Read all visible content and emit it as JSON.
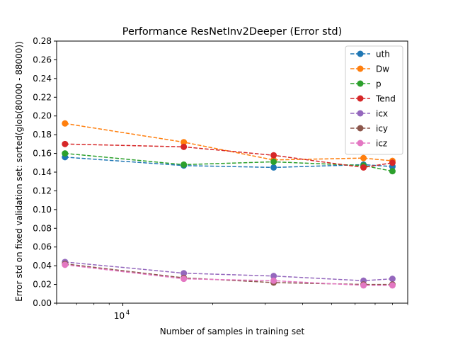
{
  "chart_data": {
    "type": "line",
    "title": "Performance ResNetInv2Deeper (Error std)",
    "xlabel": "Number of samples in training set",
    "ylabel": "Error std on fixed validation set: sorted(glob(80000 - 88000))",
    "xscale": "log",
    "xlim": [
      6000,
      90000
    ],
    "ylim": [
      0,
      0.28
    ],
    "yticks": [
      "0.00",
      "0.02",
      "0.04",
      "0.06",
      "0.08",
      "0.10",
      "0.12",
      "0.14",
      "0.16",
      "0.18",
      "0.20",
      "0.22",
      "0.24",
      "0.26",
      "0.28"
    ],
    "xtick_major": {
      "value": 10000,
      "base": "10",
      "exp": "4"
    },
    "grid": false,
    "legend_position": "top-right",
    "x": [
      6400,
      16000,
      32000,
      64000,
      80000
    ],
    "series": [
      {
        "name": "uth",
        "color": "#1f77b4",
        "values": [
          0.156,
          0.147,
          0.145,
          0.148,
          0.146
        ]
      },
      {
        "name": "Dw",
        "color": "#ff7f0e",
        "values": [
          0.192,
          0.172,
          0.153,
          0.155,
          0.152
        ]
      },
      {
        "name": "p",
        "color": "#2ca02c",
        "values": [
          0.16,
          0.148,
          0.151,
          0.147,
          0.141
        ]
      },
      {
        "name": "Tend",
        "color": "#d62728",
        "values": [
          0.17,
          0.167,
          0.158,
          0.145,
          0.15
        ]
      },
      {
        "name": "icx",
        "color": "#9467bd",
        "values": [
          0.044,
          0.032,
          0.029,
          0.024,
          0.026
        ]
      },
      {
        "name": "icy",
        "color": "#8c564b",
        "values": [
          0.042,
          0.027,
          0.022,
          0.02,
          0.02
        ]
      },
      {
        "name": "icz",
        "color": "#e377c2",
        "values": [
          0.041,
          0.026,
          0.024,
          0.019,
          0.019
        ]
      }
    ]
  }
}
